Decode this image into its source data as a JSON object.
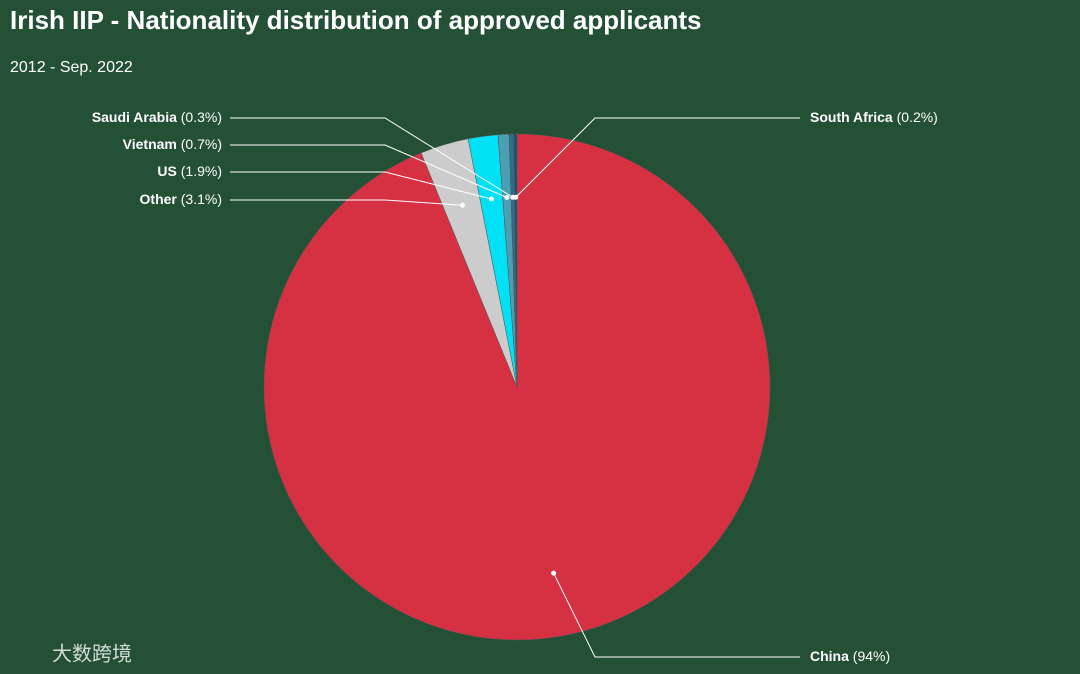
{
  "chart_data": {
    "type": "pie",
    "title": "Irish IIP - Nationality distribution of approved applicants",
    "subtitle": "2012 - Sep. 2022",
    "categories": [
      "China",
      "Other",
      "US",
      "Vietnam",
      "Saudi Arabia",
      "South Africa"
    ],
    "values": [
      94,
      3.1,
      1.9,
      0.7,
      0.3,
      0.2
    ],
    "value_labels": [
      "(94%)",
      "(3.1%)",
      "(1.9%)",
      "(0.7%)",
      "(0.3%)",
      "(0.2%)"
    ],
    "colors": [
      "#d63043",
      "#cccccc",
      "#00e1f5",
      "#4aa0b2",
      "#2b6f86",
      "#1d4f78"
    ],
    "watermark": "大数跨境"
  }
}
